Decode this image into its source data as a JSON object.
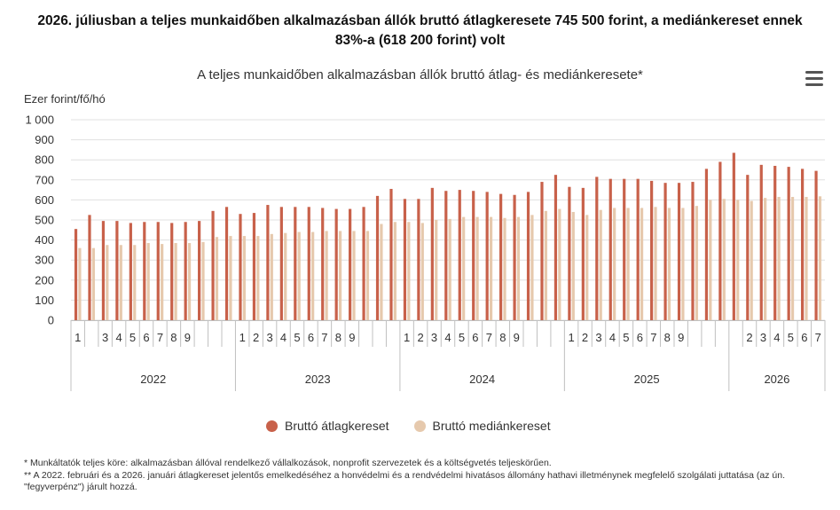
{
  "headline": {
    "line1": "2026. júliusban a teljes munkaidőben alkalmazásban állók bruttó átlagkeresete 745 500 forint, a mediánkereset ennek",
    "line2": "83%-a (618 200 forint) volt"
  },
  "menu": {
    "icon": "hamburger-menu-icon"
  },
  "colors": {
    "avg": "#c8614a",
    "median": "#e6c9ad",
    "grid": "#e0e0e0",
    "axis": "#c0c0c0"
  },
  "chart_data": {
    "type": "bar",
    "title": "A teljes munkaidőben alkalmazásban állók bruttó átlag- és mediánkeresete*",
    "ylabel": "Ezer forint/fő/hó",
    "ylim": [
      0,
      1000
    ],
    "yticks": [
      "0",
      "100",
      "200",
      "300",
      "400",
      "500",
      "600",
      "700",
      "800",
      "900",
      "1 000"
    ],
    "years": [
      "2022",
      "2023",
      "2024",
      "2025",
      "2026"
    ],
    "month_labels": [
      [
        "1",
        "",
        "3",
        "4",
        "5",
        "6",
        "7",
        "8",
        "9",
        "",
        "",
        ""
      ],
      [
        "1",
        "2",
        "3",
        "4",
        "5",
        "6",
        "7",
        "8",
        "9",
        "",
        "",
        ""
      ],
      [
        "1",
        "2",
        "3",
        "4",
        "5",
        "6",
        "7",
        "8",
        "9",
        "",
        "",
        ""
      ],
      [
        "1",
        "2",
        "3",
        "4",
        "5",
        "6",
        "7",
        "8",
        "9",
        "",
        "",
        ""
      ],
      [
        "",
        "2",
        "3",
        "4",
        "5",
        "6",
        "7"
      ]
    ],
    "series": [
      {
        "name": "Bruttó átlagkereset",
        "values": [
          [
            455,
            525,
            495,
            495,
            485,
            490,
            490,
            485,
            490,
            495,
            545,
            565
          ],
          [
            530,
            535,
            575,
            565,
            565,
            565,
            560,
            555,
            555,
            565,
            620,
            655
          ],
          [
            605,
            605,
            660,
            645,
            650,
            645,
            640,
            630,
            625,
            640,
            690,
            725
          ],
          [
            665,
            660,
            715,
            705,
            705,
            705,
            695,
            685,
            685,
            690,
            755,
            790
          ],
          [
            835,
            725,
            775,
            770,
            765,
            755,
            745
          ]
        ]
      },
      {
        "name": "Bruttó mediánkereset",
        "values": [
          [
            360,
            360,
            375,
            375,
            375,
            385,
            380,
            385,
            385,
            390,
            415,
            420
          ],
          [
            420,
            420,
            430,
            435,
            440,
            440,
            445,
            445,
            445,
            445,
            480,
            490
          ],
          [
            490,
            485,
            500,
            505,
            515,
            515,
            515,
            510,
            515,
            525,
            545,
            555
          ],
          [
            540,
            525,
            550,
            560,
            560,
            560,
            565,
            560,
            560,
            570,
            600,
            605
          ],
          [
            600,
            595,
            610,
            615,
            615,
            615,
            618
          ]
        ]
      }
    ]
  },
  "legend": {
    "avg_label": "Bruttó átlagkereset",
    "median_label": "Bruttó mediánkereset"
  },
  "notes": {
    "note1": "* Munkáltatók teljes köre: alkalmazásban állóval rendelkező vállalkozások, nonprofit szervezetek és a költségvetés teljeskörűen.",
    "note2": "** A 2022. februári és a 2026. januári átlagkereset jelentős emelkedéséhez a honvédelmi és a rendvédelmi hivatásos állomány hathavi illetménynek megfelelő szolgálati juttatása (az ún. \"fegyverpénz\") járult hozzá."
  }
}
